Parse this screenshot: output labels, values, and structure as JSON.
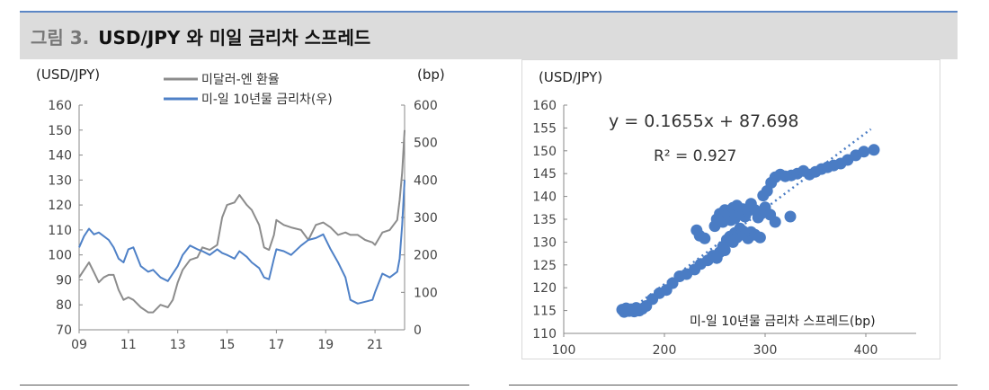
{
  "header": {
    "figure_label": "그림 3.",
    "figure_title": "USD/JPY 와 미일 금리차 스프레드"
  },
  "colors": {
    "title_bg": "#dcdcdc",
    "accent_rule": "#5b86c5",
    "usdjpy_line": "#8c8c8c",
    "spread_line": "#4f81c7",
    "scatter_point": "#4a7cc4",
    "trend_line": "#4a7cc4"
  },
  "chart_data": [
    {
      "type": "line",
      "y_left_label": "(USD/JPY)",
      "y_right_label": "(bp)",
      "ylim_left": [
        70,
        160
      ],
      "yticks_left": [
        "70",
        "80",
        "90",
        "100",
        "110",
        "120",
        "130",
        "140",
        "150",
        "160"
      ],
      "ylim_right": [
        0,
        600
      ],
      "yticks_right": [
        "0",
        "100",
        "200",
        "300",
        "400",
        "500",
        "600"
      ],
      "xlim": [
        2009,
        2022.2
      ],
      "xticks": [
        "09",
        "11",
        "13",
        "15",
        "17",
        "19",
        "21"
      ],
      "legend": [
        "미달러-엔 환율",
        "미-일 10년물 금리차(우)"
      ],
      "grid": false,
      "series": [
        {
          "name": "미달러-엔 환율",
          "axis": "left",
          "x": [
            2009.0,
            2009.2,
            2009.4,
            2009.6,
            2009.8,
            2010.0,
            2010.2,
            2010.4,
            2010.6,
            2010.8,
            2011.0,
            2011.2,
            2011.5,
            2011.8,
            2012.0,
            2012.3,
            2012.6,
            2012.8,
            2013.0,
            2013.2,
            2013.5,
            2013.8,
            2014.0,
            2014.3,
            2014.6,
            2014.8,
            2015.0,
            2015.3,
            2015.5,
            2015.8,
            2016.0,
            2016.3,
            2016.5,
            2016.7,
            2016.9,
            2017.0,
            2017.3,
            2017.6,
            2018.0,
            2018.3,
            2018.6,
            2018.9,
            2019.2,
            2019.5,
            2019.8,
            2020.0,
            2020.3,
            2020.6,
            2020.9,
            2021.0,
            2021.3,
            2021.6,
            2021.9,
            2022.0,
            2022.1,
            2022.2
          ],
          "values": [
            91,
            94,
            97,
            93,
            89,
            91,
            92,
            92,
            86,
            82,
            83,
            82,
            79,
            77,
            77,
            80,
            79,
            82,
            89,
            94,
            98,
            99,
            103,
            102,
            104,
            115,
            120,
            121,
            124,
            120,
            118,
            112,
            103,
            102,
            108,
            114,
            112,
            111,
            110,
            106,
            112,
            113,
            111,
            108,
            109,
            108,
            108,
            106,
            105,
            104,
            109,
            110,
            114,
            122,
            133,
            150
          ]
        },
        {
          "name": "미-일 10년물 금리차(우)",
          "axis": "right",
          "x": [
            2009.0,
            2009.2,
            2009.4,
            2009.6,
            2009.8,
            2010.0,
            2010.2,
            2010.4,
            2010.6,
            2010.8,
            2011.0,
            2011.2,
            2011.5,
            2011.8,
            2012.0,
            2012.3,
            2012.6,
            2012.8,
            2013.0,
            2013.2,
            2013.5,
            2013.8,
            2014.0,
            2014.3,
            2014.6,
            2014.8,
            2015.0,
            2015.3,
            2015.5,
            2015.8,
            2016.0,
            2016.3,
            2016.5,
            2016.7,
            2016.9,
            2017.0,
            2017.3,
            2017.6,
            2018.0,
            2018.3,
            2018.6,
            2018.9,
            2019.2,
            2019.5,
            2019.8,
            2020.0,
            2020.3,
            2020.6,
            2020.9,
            2021.0,
            2021.3,
            2021.6,
            2021.9,
            2022.0,
            2022.1,
            2022.2
          ],
          "values": [
            220,
            250,
            270,
            255,
            260,
            250,
            240,
            220,
            190,
            180,
            215,
            220,
            170,
            155,
            160,
            140,
            130,
            150,
            170,
            200,
            225,
            215,
            210,
            200,
            215,
            205,
            200,
            190,
            210,
            195,
            180,
            165,
            140,
            135,
            190,
            215,
            210,
            200,
            225,
            240,
            245,
            255,
            215,
            180,
            140,
            80,
            70,
            75,
            80,
            100,
            150,
            140,
            155,
            190,
            280,
            400
          ]
        }
      ]
    },
    {
      "type": "scatter",
      "y_label": "(USD/JPY)",
      "x_label": "미-일 10년물 금리차 스프레드(bp)",
      "xlim": [
        100,
        450
      ],
      "xticks": [
        "100",
        "200",
        "300",
        "400"
      ],
      "ylim": [
        110,
        160
      ],
      "yticks": [
        "110",
        "115",
        "120",
        "125",
        "130",
        "135",
        "140",
        "145",
        "150",
        "155",
        "160"
      ],
      "equation": "y = 0.1655x + 87.698",
      "r_squared": "R² = 0.927",
      "trend": {
        "slope": 0.1655,
        "intercept": 87.698,
        "x_range": [
          160,
          405
        ]
      },
      "grid": false,
      "points": [
        [
          158,
          115.2
        ],
        [
          160,
          114.7
        ],
        [
          162,
          115.5
        ],
        [
          165,
          114.9
        ],
        [
          167,
          115.3
        ],
        [
          170,
          114.8
        ],
        [
          172,
          115.6
        ],
        [
          175,
          115.0
        ],
        [
          178,
          115.4
        ],
        [
          182,
          116.0
        ],
        [
          188,
          117.5
        ],
        [
          195,
          118.8
        ],
        [
          202,
          119.5
        ],
        [
          208,
          121.0
        ],
        [
          215,
          122.5
        ],
        [
          222,
          123.0
        ],
        [
          230,
          124.0
        ],
        [
          236,
          125.2
        ],
        [
          243,
          126.0
        ],
        [
          248,
          127.0
        ],
        [
          252,
          126.5
        ],
        [
          255,
          127.8
        ],
        [
          258,
          129.0
        ],
        [
          260,
          128.2
        ],
        [
          262,
          130.5
        ],
        [
          265,
          131.2
        ],
        [
          268,
          130.0
        ],
        [
          270,
          132.0
        ],
        [
          272,
          131.0
        ],
        [
          275,
          133.0
        ],
        [
          278,
          132.4
        ],
        [
          280,
          131.5
        ],
        [
          283,
          130.8
        ],
        [
          286,
          132.2
        ],
        [
          290,
          131.6
        ],
        [
          295,
          131.0
        ],
        [
          250,
          133.5
        ],
        [
          252,
          135.0
        ],
        [
          255,
          136.2
        ],
        [
          258,
          134.4
        ],
        [
          260,
          137.0
        ],
        [
          263,
          136.0
        ],
        [
          266,
          134.8
        ],
        [
          268,
          137.5
        ],
        [
          270,
          135.2
        ],
        [
          272,
          138.0
        ],
        [
          275,
          136.4
        ],
        [
          278,
          137.2
        ],
        [
          280,
          135.6
        ],
        [
          283,
          136.8
        ],
        [
          286,
          138.4
        ],
        [
          290,
          137.0
        ],
        [
          293,
          135.4
        ],
        [
          296,
          136.2
        ],
        [
          300,
          137.6
        ],
        [
          305,
          136.0
        ],
        [
          310,
          134.4
        ],
        [
          325,
          135.6
        ],
        [
          232,
          132.6
        ],
        [
          235,
          131.4
        ],
        [
          240,
          130.8
        ],
        [
          298,
          140.2
        ],
        [
          302,
          141.2
        ],
        [
          306,
          143.0
        ],
        [
          310,
          144.2
        ],
        [
          315,
          144.8
        ],
        [
          320,
          144.4
        ],
        [
          326,
          144.6
        ],
        [
          332,
          145.0
        ],
        [
          338,
          145.6
        ],
        [
          344,
          144.8
        ],
        [
          350,
          145.4
        ],
        [
          356,
          146.0
        ],
        [
          362,
          146.4
        ],
        [
          368,
          146.8
        ],
        [
          375,
          147.2
        ],
        [
          382,
          148.0
        ],
        [
          390,
          149.0
        ],
        [
          398,
          149.8
        ],
        [
          408,
          150.2
        ]
      ]
    }
  ]
}
